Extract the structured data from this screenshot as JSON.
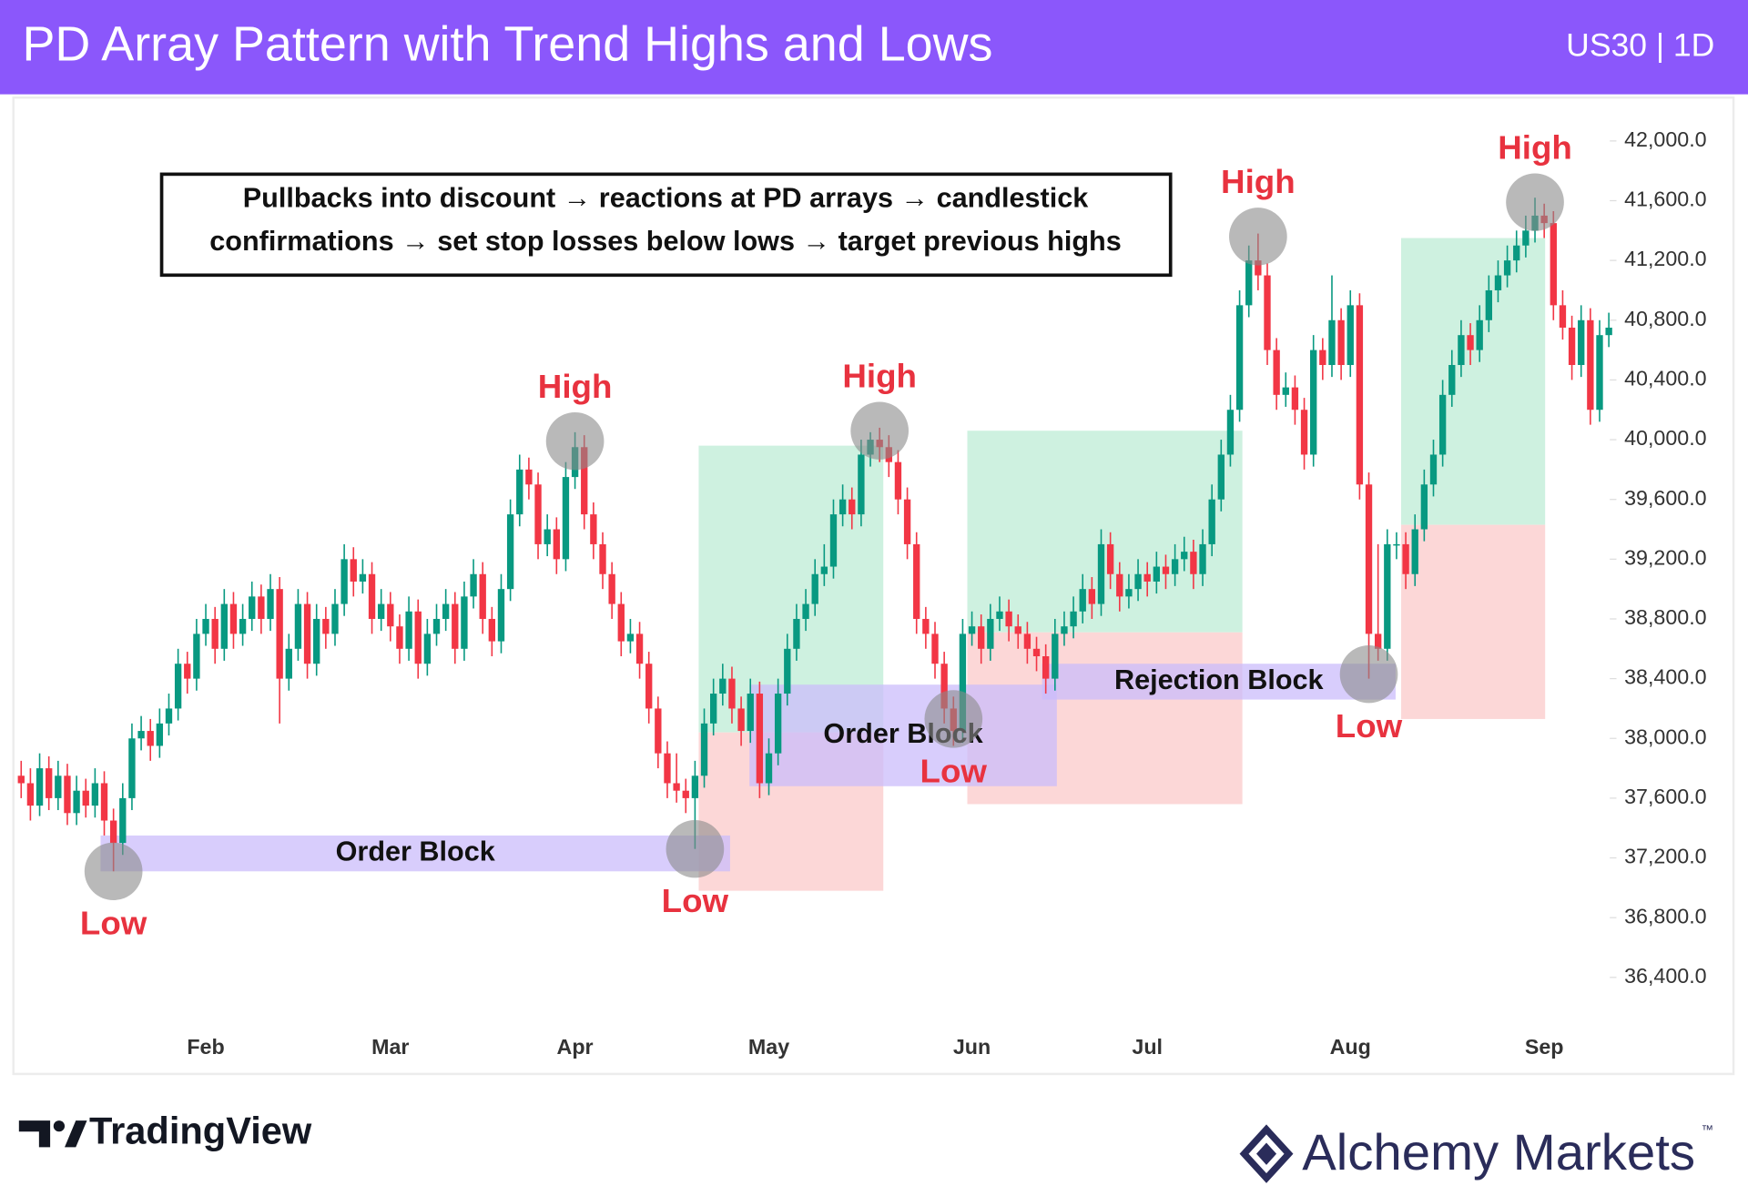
{
  "chart_data": {
    "type": "candlestick",
    "title": "PD Array Pattern with Trend Highs and Lows",
    "subtitle": "US30 | 1D",
    "note": [
      "Pullbacks into discount → reactions at PD arrays → candlestick",
      "confirmations → set stop losses below lows → target previous highs"
    ],
    "up_color": "#089981",
    "down_color": "#f23645",
    "ylim": [
      36110,
      42290
    ],
    "yticks": [
      {
        "value": 36400,
        "label": "36,400.0"
      },
      {
        "value": 36800,
        "label": "36,800.0"
      },
      {
        "value": 37200,
        "label": "37,200.0"
      },
      {
        "value": 37600,
        "label": "37,600.0"
      },
      {
        "value": 38000,
        "label": "38,000.0"
      },
      {
        "value": 38400,
        "label": "38,400.0"
      },
      {
        "value": 38800,
        "label": "38,800.0"
      },
      {
        "value": 39200,
        "label": "39,200.0"
      },
      {
        "value": 39600,
        "label": "39,600.0"
      },
      {
        "value": 40000,
        "label": "40,000.0"
      },
      {
        "value": 40400,
        "label": "40,400.0"
      },
      {
        "value": 40800,
        "label": "40,800.0"
      },
      {
        "value": 41200,
        "label": "41,200.0"
      },
      {
        "value": 41600,
        "label": "41,600.0"
      },
      {
        "value": 42000,
        "label": "42,000.0"
      }
    ],
    "categories": [
      null,
      null,
      null,
      null,
      null,
      null,
      null,
      null,
      null,
      null,
      null,
      null,
      null,
      null,
      null,
      null,
      null,
      null,
      null,
      null,
      "Feb",
      null,
      null,
      null,
      null,
      null,
      null,
      null,
      null,
      null,
      null,
      null,
      null,
      null,
      null,
      null,
      null,
      null,
      null,
      null,
      "Mar",
      null,
      null,
      null,
      null,
      null,
      null,
      null,
      null,
      null,
      null,
      null,
      null,
      null,
      null,
      null,
      null,
      null,
      null,
      null,
      "Apr",
      null,
      null,
      null,
      null,
      null,
      null,
      null,
      null,
      null,
      null,
      null,
      null,
      null,
      null,
      null,
      null,
      null,
      null,
      null,
      null,
      "May",
      null,
      null,
      null,
      null,
      null,
      null,
      null,
      null,
      null,
      null,
      null,
      null,
      null,
      null,
      null,
      null,
      null,
      null,
      null,
      null,
      null,
      "Jun",
      null,
      null,
      null,
      null,
      null,
      null,
      null,
      null,
      null,
      null,
      null,
      null,
      null,
      null,
      null,
      null,
      null,
      null,
      "Jul",
      null,
      null,
      null,
      null,
      null,
      null,
      null,
      null,
      null,
      null,
      null,
      null,
      null,
      null,
      null,
      null,
      null,
      null,
      null,
      null,
      null,
      "Aug",
      null,
      null,
      null,
      null,
      null,
      null,
      null,
      null,
      null,
      null,
      null,
      null,
      null,
      null,
      null,
      null,
      null,
      null,
      null,
      null,
      "Sep",
      null,
      null,
      null,
      null,
      null,
      null,
      null
    ],
    "candles": [
      [
        37750,
        37850,
        37600,
        37700
      ],
      [
        37700,
        37800,
        37450,
        37550
      ],
      [
        37550,
        37900,
        37480,
        37800
      ],
      [
        37800,
        37880,
        37520,
        37600
      ],
      [
        37600,
        37850,
        37520,
        37750
      ],
      [
        37750,
        37830,
        37420,
        37500
      ],
      [
        37500,
        37750,
        37420,
        37650
      ],
      [
        37650,
        37730,
        37470,
        37550
      ],
      [
        37550,
        37800,
        37470,
        37700
      ],
      [
        37700,
        37780,
        37350,
        37450
      ],
      [
        37450,
        37530,
        37110,
        37300
      ],
      [
        37300,
        37700,
        37220,
        37600
      ],
      [
        37600,
        38100,
        37520,
        38000
      ],
      [
        38000,
        38150,
        37920,
        38050
      ],
      [
        38050,
        38130,
        37850,
        37950
      ],
      [
        37950,
        38200,
        37870,
        38100
      ],
      [
        38100,
        38300,
        38020,
        38200
      ],
      [
        38200,
        38600,
        38120,
        38500
      ],
      [
        38500,
        38580,
        38300,
        38400
      ],
      [
        38400,
        38800,
        38320,
        38700
      ],
      [
        38700,
        38900,
        38620,
        38800
      ],
      [
        38800,
        38880,
        38500,
        38600
      ],
      [
        38600,
        39000,
        38520,
        38900
      ],
      [
        38900,
        38980,
        38600,
        38700
      ],
      [
        38700,
        38900,
        38620,
        38800
      ],
      [
        38800,
        39050,
        38720,
        38950
      ],
      [
        38950,
        39030,
        38700,
        38800
      ],
      [
        38800,
        39100,
        38720,
        39000
      ],
      [
        39000,
        39080,
        38100,
        38400
      ],
      [
        38400,
        38700,
        38320,
        38600
      ],
      [
        38600,
        39000,
        38520,
        38900
      ],
      [
        38900,
        38980,
        38400,
        38500
      ],
      [
        38500,
        38900,
        38420,
        38800
      ],
      [
        38800,
        38880,
        38600,
        38700
      ],
      [
        38700,
        39000,
        38620,
        38900
      ],
      [
        38900,
        39300,
        38820,
        39200
      ],
      [
        39200,
        39280,
        38950,
        39050
      ],
      [
        39050,
        39200,
        38970,
        39100
      ],
      [
        39100,
        39180,
        38700,
        38800
      ],
      [
        38800,
        39000,
        38720,
        38900
      ],
      [
        38900,
        38980,
        38650,
        38750
      ],
      [
        38750,
        38830,
        38500,
        38600
      ],
      [
        38600,
        38950,
        38520,
        38850
      ],
      [
        38850,
        38930,
        38400,
        38500
      ],
      [
        38500,
        38800,
        38420,
        38700
      ],
      [
        38700,
        38900,
        38620,
        38800
      ],
      [
        38800,
        39000,
        38720,
        38900
      ],
      [
        38900,
        38980,
        38500,
        38600
      ],
      [
        38600,
        39050,
        38520,
        38950
      ],
      [
        38950,
        39200,
        38870,
        39100
      ],
      [
        39100,
        39180,
        38700,
        38800
      ],
      [
        38800,
        38880,
        38550,
        38650
      ],
      [
        38650,
        39100,
        38570,
        39000
      ],
      [
        39000,
        39600,
        38920,
        39500
      ],
      [
        39500,
        39900,
        39420,
        39800
      ],
      [
        39800,
        39880,
        39600,
        39700
      ],
      [
        39700,
        39780,
        39200,
        39300
      ],
      [
        39300,
        39500,
        39220,
        39400
      ],
      [
        39400,
        39480,
        39100,
        39200
      ],
      [
        39200,
        39850,
        39120,
        39750
      ],
      [
        39750,
        40050,
        39670,
        39950
      ],
      [
        39950,
        40030,
        39400,
        39500
      ],
      [
        39500,
        39580,
        39200,
        39300
      ],
      [
        39300,
        39380,
        39000,
        39100
      ],
      [
        39100,
        39180,
        38800,
        38900
      ],
      [
        38900,
        38980,
        38550,
        38650
      ],
      [
        38650,
        38800,
        38570,
        38700
      ],
      [
        38700,
        38780,
        38400,
        38500
      ],
      [
        38500,
        38580,
        38100,
        38200
      ],
      [
        38200,
        38280,
        37800,
        37900
      ],
      [
        37900,
        37980,
        37600,
        37700
      ],
      [
        37700,
        37900,
        37570,
        37650
      ],
      [
        37650,
        37730,
        37500,
        37600
      ],
      [
        37600,
        37850,
        37260,
        37750
      ],
      [
        37750,
        38200,
        37670,
        38100
      ],
      [
        38100,
        38400,
        38020,
        38300
      ],
      [
        38300,
        38500,
        38220,
        38400
      ],
      [
        38400,
        38480,
        38100,
        38200
      ],
      [
        38200,
        38280,
        37950,
        38050
      ],
      [
        38050,
        38400,
        37970,
        38300
      ],
      [
        38300,
        38380,
        37600,
        37700
      ],
      [
        37700,
        38000,
        37620,
        37900
      ],
      [
        37900,
        38400,
        37820,
        38300
      ],
      [
        38300,
        38700,
        38220,
        38600
      ],
      [
        38600,
        38900,
        38520,
        38800
      ],
      [
        38800,
        39000,
        38720,
        38900
      ],
      [
        38900,
        39200,
        38820,
        39100
      ],
      [
        39100,
        39300,
        39020,
        39150
      ],
      [
        39150,
        39600,
        39070,
        39500
      ],
      [
        39500,
        39700,
        39420,
        39600
      ],
      [
        39600,
        39680,
        39400,
        39500
      ],
      [
        39500,
        40000,
        39420,
        39900
      ],
      [
        39900,
        40050,
        39820,
        40000
      ],
      [
        40000,
        40080,
        39850,
        39950
      ],
      [
        39950,
        40030,
        39750,
        39850
      ],
      [
        39850,
        39930,
        39500,
        39600
      ],
      [
        39600,
        39680,
        39200,
        39300
      ],
      [
        39300,
        39380,
        38700,
        38800
      ],
      [
        38800,
        38880,
        38600,
        38700
      ],
      [
        38700,
        38780,
        38400,
        38500
      ],
      [
        38500,
        38580,
        38100,
        38200
      ],
      [
        38200,
        38280,
        37950,
        38050
      ],
      [
        38050,
        38800,
        37970,
        38700
      ],
      [
        38700,
        38850,
        38620,
        38750
      ],
      [
        38750,
        38830,
        38500,
        38600
      ],
      [
        38600,
        38900,
        38520,
        38800
      ],
      [
        38800,
        38950,
        38720,
        38850
      ],
      [
        38850,
        38930,
        38650,
        38750
      ],
      [
        38750,
        38830,
        38600,
        38700
      ],
      [
        38700,
        38780,
        38500,
        38600
      ],
      [
        38600,
        38680,
        38450,
        38550
      ],
      [
        38550,
        38630,
        38300,
        38400
      ],
      [
        38400,
        38800,
        38320,
        38700
      ],
      [
        38700,
        38850,
        38620,
        38750
      ],
      [
        38750,
        38950,
        38670,
        38850
      ],
      [
        38850,
        39100,
        38770,
        39000
      ],
      [
        39000,
        39080,
        38800,
        38900
      ],
      [
        38900,
        39400,
        38820,
        39300
      ],
      [
        39300,
        39380,
        39000,
        39100
      ],
      [
        39100,
        39180,
        38850,
        38950
      ],
      [
        38950,
        39100,
        38870,
        39000
      ],
      [
        39000,
        39200,
        38920,
        39100
      ],
      [
        39100,
        39180,
        38950,
        39050
      ],
      [
        39050,
        39250,
        38970,
        39150
      ],
      [
        39150,
        39230,
        39000,
        39100
      ],
      [
        39100,
        39300,
        39020,
        39200
      ],
      [
        39200,
        39350,
        39120,
        39250
      ],
      [
        39250,
        39330,
        39000,
        39100
      ],
      [
        39100,
        39400,
        39020,
        39300
      ],
      [
        39300,
        39700,
        39220,
        39600
      ],
      [
        39600,
        40000,
        39520,
        39900
      ],
      [
        39900,
        40300,
        39820,
        40200
      ],
      [
        40200,
        41000,
        40120,
        40900
      ],
      [
        40900,
        41300,
        40820,
        41200
      ],
      [
        41200,
        41380,
        41000,
        41100
      ],
      [
        41100,
        41180,
        40500,
        40600
      ],
      [
        40600,
        40680,
        40200,
        40300
      ],
      [
        40300,
        40450,
        40220,
        40350
      ],
      [
        40350,
        40430,
        40100,
        40200
      ],
      [
        40200,
        40280,
        39800,
        39900
      ],
      [
        39900,
        40700,
        39820,
        40600
      ],
      [
        40600,
        40680,
        40400,
        40500
      ],
      [
        40500,
        41100,
        40420,
        40800
      ],
      [
        40800,
        40880,
        40400,
        40500
      ],
      [
        40500,
        41000,
        40420,
        40900
      ],
      [
        40900,
        40980,
        39600,
        39700
      ],
      [
        39700,
        39780,
        38400,
        38700
      ],
      [
        38700,
        39300,
        38520,
        38600
      ],
      [
        38600,
        39400,
        38520,
        39300
      ],
      [
        39300,
        39380,
        39200,
        39300
      ],
      [
        39300,
        39380,
        39000,
        39100
      ],
      [
        39100,
        39500,
        39020,
        39400
      ],
      [
        39400,
        39800,
        39320,
        39700
      ],
      [
        39700,
        40000,
        39620,
        39900
      ],
      [
        39900,
        40400,
        39820,
        40300
      ],
      [
        40300,
        40600,
        40220,
        40500
      ],
      [
        40500,
        40800,
        40420,
        40700
      ],
      [
        40700,
        40780,
        40500,
        40600
      ],
      [
        40600,
        40900,
        40520,
        40800
      ],
      [
        40800,
        41100,
        40720,
        41000
      ],
      [
        41000,
        41200,
        40920,
        41100
      ],
      [
        41100,
        41300,
        41020,
        41200
      ],
      [
        41200,
        41400,
        41120,
        41300
      ],
      [
        41300,
        41500,
        41220,
        41400
      ],
      [
        41400,
        41620,
        41320,
        41500
      ],
      [
        41500,
        41580,
        41350,
        41450
      ],
      [
        41450,
        41530,
        40800,
        40900
      ],
      [
        40900,
        41000,
        40670,
        40750
      ],
      [
        40750,
        40830,
        40400,
        40500
      ],
      [
        40500,
        40900,
        40420,
        40800
      ],
      [
        40800,
        40880,
        40100,
        40200
      ],
      [
        40200,
        40800,
        40120,
        40700
      ],
      [
        40700,
        40850,
        40620,
        40750
      ]
    ],
    "zones": [
      {
        "x0": 73.4,
        "x1": 93.4,
        "y0": 38040,
        "y1": 39960,
        "color": "#c9f0dd"
      },
      {
        "x0": 73.4,
        "x1": 93.4,
        "y0": 36980,
        "y1": 38040,
        "color": "#fcd3d3"
      },
      {
        "x0": 102.5,
        "x1": 132.3,
        "y0": 38710,
        "y1": 40060,
        "color": "#c9f0dd"
      },
      {
        "x0": 102.5,
        "x1": 132.3,
        "y0": 37560,
        "y1": 38710,
        "color": "#fcd3d3"
      },
      {
        "x0": 149.5,
        "x1": 165.1,
        "y0": 39430,
        "y1": 41350,
        "color": "#c9f0dd"
      },
      {
        "x0": 149.5,
        "x1": 165.1,
        "y0": 38130,
        "y1": 39430,
        "color": "#fcd3d3"
      },
      {
        "x0": 8.6,
        "x1": 76.8,
        "y0": 37110,
        "y1": 37350,
        "color": "#cbbcfb",
        "label": "Order Block"
      },
      {
        "x0": 78.9,
        "x1": 112.2,
        "y0": 37680,
        "y1": 38360,
        "color": "#cbbcfb",
        "label": "Order Block"
      },
      {
        "x0": 110.6,
        "x1": 148.9,
        "y0": 38260,
        "y1": 38500,
        "color": "#cbbcfb",
        "label": "Rejection Block"
      }
    ],
    "annotations": [
      {
        "text": "Low",
        "x": 10,
        "y": 37110
      },
      {
        "text": "High",
        "x": 60,
        "y": 39990
      },
      {
        "text": "Low",
        "x": 73,
        "y": 37260
      },
      {
        "text": "High",
        "x": 93,
        "y": 40060
      },
      {
        "text": "Low",
        "x": 101,
        "y": 38130
      },
      {
        "text": "High",
        "x": 134,
        "y": 41360
      },
      {
        "text": "Low",
        "x": 146,
        "y": 38430
      },
      {
        "text": "High",
        "x": 164,
        "y": 41590
      }
    ],
    "label_color": "#e8323f"
  },
  "branding": {
    "left": "TradingView",
    "right": "Alchemy Markets",
    "mark": "™"
  }
}
